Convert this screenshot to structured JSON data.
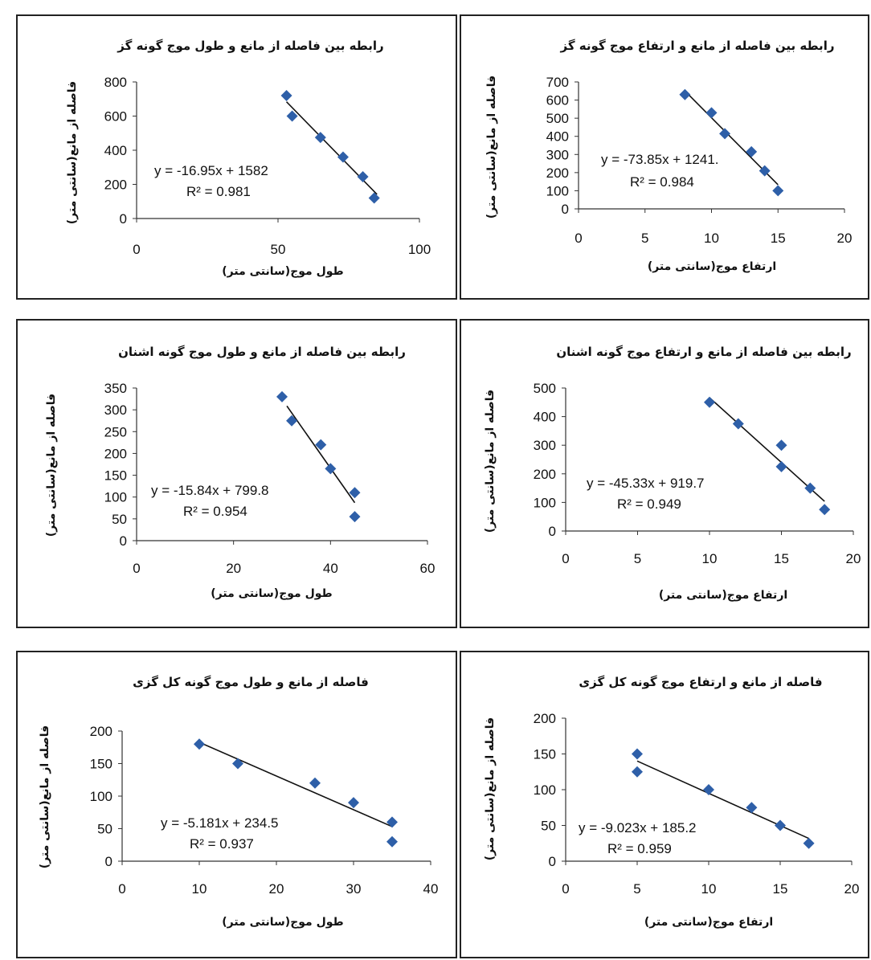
{
  "chart_data": [
    {
      "type": "scatter",
      "title": "رابطه بین فاصله از مانع و طول موج گونه گز",
      "xlabel": "طول موج(سانتی متر)",
      "ylabel": "فاصله از مانع(سانتی متر)",
      "xlim": [
        0,
        100
      ],
      "ylim": [
        0,
        800
      ],
      "xticks": [
        0,
        50,
        100
      ],
      "yticks": [
        0,
        200,
        400,
        600,
        800
      ],
      "x": [
        53,
        55,
        65,
        73,
        80,
        84
      ],
      "y": [
        720,
        600,
        475,
        360,
        245,
        120
      ],
      "trend": {
        "slope": -16.95,
        "intercept": 1582,
        "x_range": [
          53,
          85
        ]
      },
      "equation": "y = -16.95x + 1582",
      "r2": "R² = 0.981",
      "marker_color": "#2e5fa8"
    },
    {
      "type": "scatter",
      "title": "رابطه بین فاصله از مانع و ارتفاع موج گونه گز",
      "xlabel": "ارتفاع موج(سانتی متر)",
      "ylabel": "فاصله از مانع(سانتی متر)",
      "xlim": [
        0,
        20
      ],
      "ylim": [
        0,
        700
      ],
      "xticks": [
        0,
        5,
        10,
        15,
        20
      ],
      "yticks": [
        0,
        100,
        200,
        300,
        400,
        500,
        600,
        700
      ],
      "x": [
        8,
        10,
        11,
        13,
        14,
        15
      ],
      "y": [
        630,
        530,
        415,
        315,
        210,
        100
      ],
      "trend": {
        "slope": -73.85,
        "intercept": 1241,
        "x_range": [
          8,
          15
        ]
      },
      "equation": "y = -73.85x + 1241.",
      "r2": "R² = 0.984",
      "marker_color": "#2e5fa8"
    },
    {
      "type": "scatter",
      "title": "رابطه بین فاصله از مانع و طول موج گونه اشنان",
      "xlabel": "طول موج(سانتی متر)",
      "ylabel": "فاصله از مانع(سانتی متر)",
      "xlim": [
        0,
        60
      ],
      "ylim": [
        0,
        350
      ],
      "xticks": [
        0,
        20,
        40,
        60
      ],
      "yticks": [
        0,
        50,
        100,
        150,
        200,
        250,
        300,
        350
      ],
      "x": [
        30,
        32,
        38,
        40,
        45,
        45
      ],
      "y": [
        330,
        275,
        220,
        165,
        110,
        55
      ],
      "trend": {
        "slope": -15.84,
        "intercept": 799.8,
        "x_range": [
          31,
          45
        ]
      },
      "equation": "y = -15.84x + 799.8",
      "r2": "R² = 0.954",
      "marker_color": "#2e5fa8"
    },
    {
      "type": "scatter",
      "title": "رابطه بین فاصله از مانع و ارتفاع موج گونه اشنان",
      "xlabel": "ارتفاع موج(سانتی متر)",
      "ylabel": "فاصله از مانع(سانتی متر)",
      "xlim": [
        0,
        20
      ],
      "ylim": [
        0,
        500
      ],
      "xticks": [
        0,
        5,
        10,
        15,
        20
      ],
      "yticks": [
        0,
        100,
        200,
        300,
        400,
        500
      ],
      "x": [
        10,
        12,
        15,
        15,
        17,
        18
      ],
      "y": [
        450,
        375,
        300,
        225,
        150,
        75
      ],
      "trend": {
        "slope": -45.33,
        "intercept": 919.7,
        "x_range": [
          10,
          18
        ]
      },
      "equation": "y = -45.33x + 919.7",
      "r2": "R² = 0.949",
      "marker_color": "#2e5fa8"
    },
    {
      "type": "scatter",
      "title": "فاصله از مانع و طول موج گونه کل گزی",
      "xlabel": "طول موج(سانتی متر)",
      "ylabel": "فاصله از مانع(سانتی متر)",
      "xlim": [
        0,
        40
      ],
      "ylim": [
        0,
        200
      ],
      "xticks": [
        0,
        10,
        20,
        30,
        40
      ],
      "yticks": [
        0,
        50,
        100,
        150,
        200
      ],
      "x": [
        10,
        15,
        25,
        30,
        35,
        35
      ],
      "y": [
        180,
        150,
        120,
        90,
        60,
        30
      ],
      "trend": {
        "slope": -5.181,
        "intercept": 234.5,
        "x_range": [
          10,
          35
        ]
      },
      "equation": "y = -5.181x + 234.5",
      "r2": "R² = 0.937",
      "marker_color": "#2e5fa8"
    },
    {
      "type": "scatter",
      "title": "فاصله از مانع و ارتفاع موج گونه کل گزی",
      "xlabel": "ارتفاع موج(سانتی متر)",
      "ylabel": "فاصله از مانع(سانتی متر)",
      "xlim": [
        0,
        20
      ],
      "ylim": [
        0,
        200
      ],
      "xticks": [
        0,
        5,
        10,
        15,
        20
      ],
      "yticks": [
        0,
        50,
        100,
        150,
        200
      ],
      "x": [
        5,
        5,
        10,
        13,
        15,
        17
      ],
      "y": [
        150,
        125,
        100,
        75,
        50,
        25
      ],
      "trend": {
        "slope": -9.023,
        "intercept": 185.2,
        "x_range": [
          5,
          17
        ]
      },
      "equation": "y = -9.023x + 185.2",
      "r2": "R² = 0.959",
      "marker_color": "#2e5fa8"
    }
  ]
}
